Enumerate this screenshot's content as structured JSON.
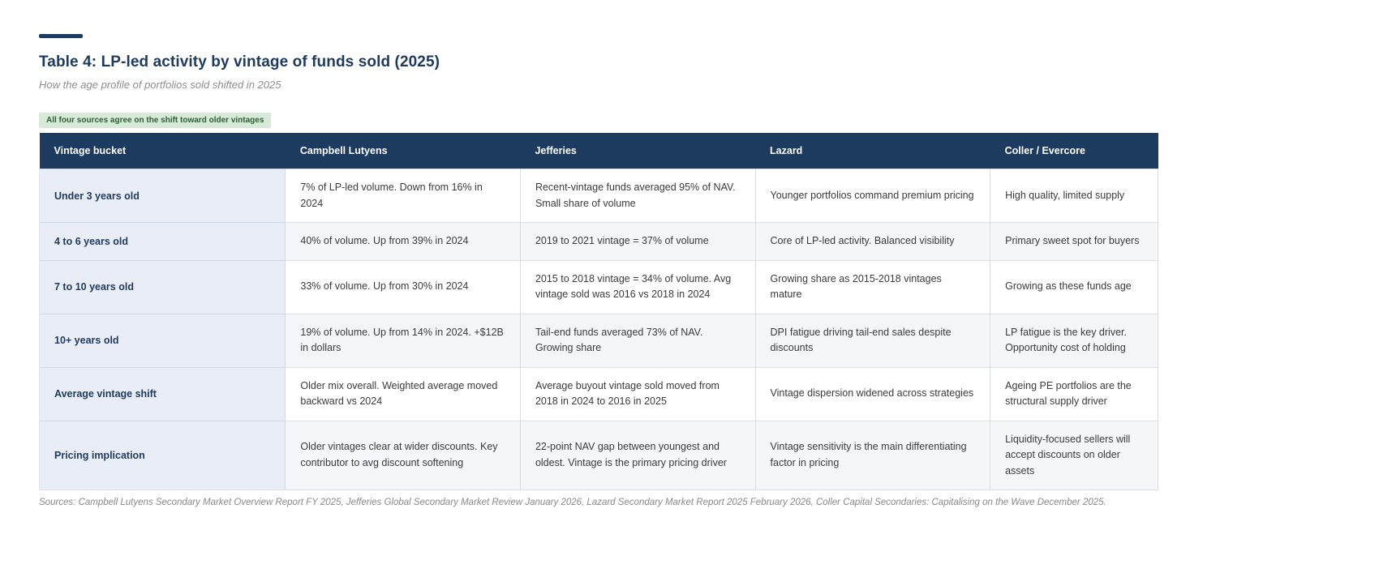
{
  "accent_color": "#1d3a5f",
  "header": {
    "title": "Table 4: LP-led activity by vintage of funds sold (2025)",
    "subtitle": "How the age profile of portfolios sold shifted in 2025",
    "badge": "All four sources agree on the shift toward older vintages"
  },
  "table": {
    "columns": [
      "Vintage bucket",
      "Campbell Lutyens",
      "Jefferies",
      "Lazard",
      "Coller / Evercore"
    ],
    "rows": [
      {
        "bucket": "Under 3 years old",
        "cells": [
          "7% of LP-led volume. Down from 16% in 2024",
          "Recent-vintage funds averaged 95% of NAV. Small share of volume",
          "Younger portfolios command premium pricing",
          "High quality, limited supply"
        ]
      },
      {
        "bucket": "4 to 6 years old",
        "cells": [
          "40% of volume. Up from 39% in 2024",
          "2019 to 2021 vintage = 37% of volume",
          "Core of LP-led activity. Balanced visibility",
          "Primary sweet spot for buyers"
        ]
      },
      {
        "bucket": "7 to 10 years old",
        "cells": [
          "33% of volume. Up from 30% in 2024",
          "2015 to 2018 vintage = 34% of volume. Avg vintage sold was 2016 vs 2018 in 2024",
          "Growing share as 2015-2018 vintages mature",
          "Growing as these funds age"
        ]
      },
      {
        "bucket": "10+ years old",
        "cells": [
          "19% of volume. Up from 14% in 2024. +$12B in dollars",
          "Tail-end funds averaged 73% of NAV. Growing share",
          "DPI fatigue driving tail-end sales despite discounts",
          "LP fatigue is the key driver. Opportunity cost of holding"
        ]
      },
      {
        "bucket": "Average vintage shift",
        "cells": [
          "Older mix overall. Weighted average moved backward vs 2024",
          "Average buyout vintage sold moved from 2018 in 2024 to 2016 in 2025",
          "Vintage dispersion widened across strategies",
          "Ageing PE portfolios are the structural supply driver"
        ]
      },
      {
        "bucket": "Pricing implication",
        "cells": [
          "Older vintages clear at wider discounts. Key contributor to avg discount softening",
          "22-point NAV gap between youngest and oldest. Vintage is the primary pricing driver",
          "Vintage sensitivity is the main differentiating factor in pricing",
          "Liquidity-focused sellers will accept discounts on older assets"
        ]
      }
    ]
  },
  "footer": {
    "sources": "Sources: Campbell Lutyens Secondary Market Overview Report FY 2025, Jefferies Global Secondary Market Review January 2026, Lazard Secondary Market Report 2025 February 2026, Coller Capital Secondaries: Capitalising on the Wave December 2025."
  }
}
